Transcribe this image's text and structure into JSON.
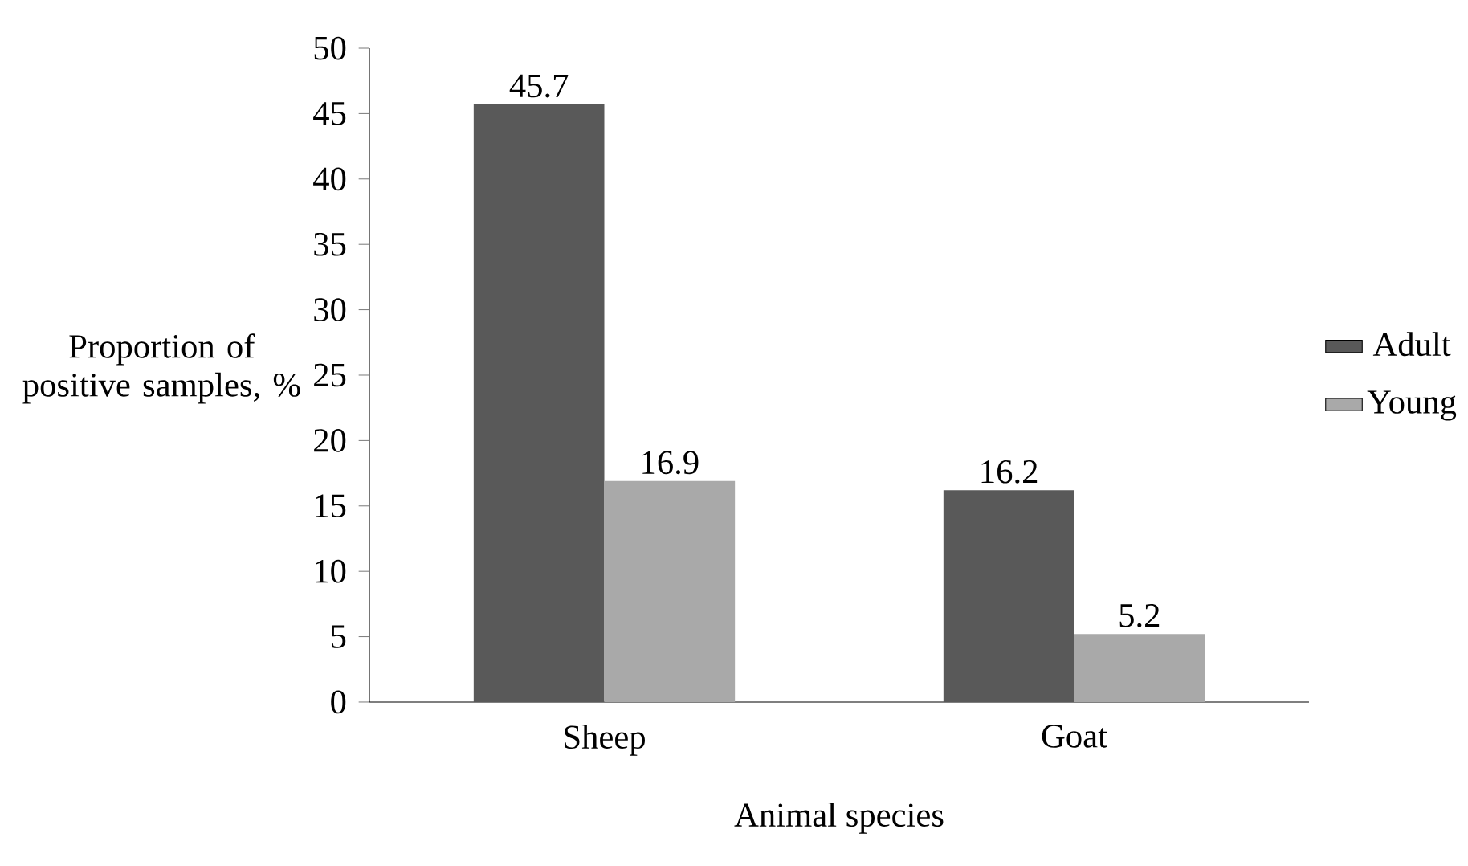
{
  "chart_data": {
    "type": "bar",
    "xlabel": "Animal species",
    "ylabel": "Proportion of positive samples, %",
    "categories": [
      "Sheep",
      "Goat"
    ],
    "series": [
      {
        "name": "Adult",
        "color": "#595959",
        "values": [
          45.7,
          16.2
        ]
      },
      {
        "name": "Young",
        "color": "#a9a9a9",
        "values": [
          16.9,
          5.2
        ]
      }
    ],
    "ylim": [
      0,
      50
    ],
    "yticks": [
      0,
      5,
      10,
      15,
      20,
      25,
      30,
      35,
      40,
      45,
      50
    ],
    "data_labels": true,
    "legend": "right",
    "grid": false
  }
}
